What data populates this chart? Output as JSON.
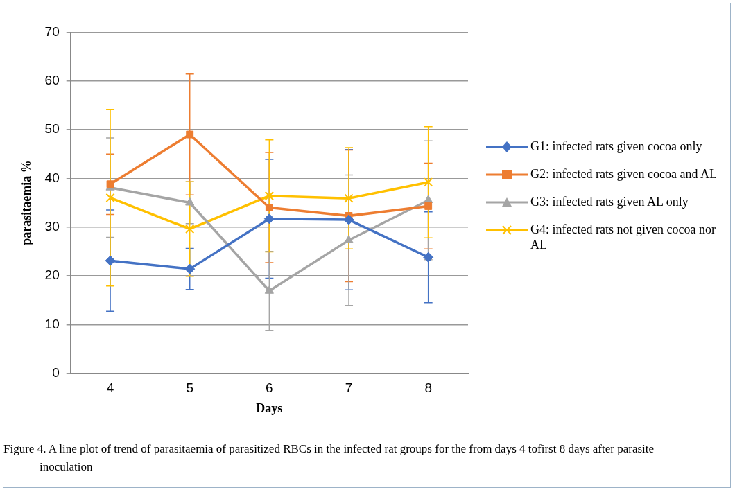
{
  "chart_data": {
    "type": "line",
    "xlabel": "Days",
    "ylabel": "parasitaemia %",
    "categories": [
      "4",
      "5",
      "6",
      "7",
      "8"
    ],
    "series": [
      {
        "name": "G1: infected rats given cocoa only",
        "color": "#4472c4",
        "marker": "diamond",
        "values": [
          23.1,
          21.4,
          31.7,
          31.5,
          23.8
        ],
        "errors": [
          10.4,
          4.2,
          12.2,
          14.4,
          9.3
        ]
      },
      {
        "name": "G2: infected rats given cocoa and AL",
        "color": "#ed7d31",
        "marker": "square",
        "values": [
          38.8,
          49.0,
          34.0,
          32.3,
          34.3
        ],
        "errors": [
          6.2,
          12.4,
          11.3,
          13.5,
          8.8
        ]
      },
      {
        "name": "G3: infected rats given AL only",
        "color": "#a5a5a5",
        "marker": "triangle",
        "values": [
          38.1,
          35.0,
          16.9,
          27.3,
          35.5
        ],
        "errors": [
          10.2,
          4.3,
          8.1,
          13.4,
          12.2
        ]
      },
      {
        "name": "G4: infected rats not given cocoa nor AL",
        "color": "#ffc000",
        "marker": "cross",
        "values": [
          36.0,
          29.6,
          36.4,
          35.9,
          39.2
        ],
        "errors": [
          18.1,
          9.7,
          11.5,
          10.4,
          11.4
        ]
      }
    ],
    "ylim": [
      0,
      70
    ],
    "yticks": [
      0,
      10,
      20,
      30,
      40,
      50,
      60,
      70
    ],
    "grid": "y",
    "legend": "right",
    "annotations": [
      "Figure 4. A line plot of trend of parasitaemia of parasitized RBCs in the infected rat groups for the from days 4 tofirst 8 days after parasite inoculation"
    ]
  }
}
